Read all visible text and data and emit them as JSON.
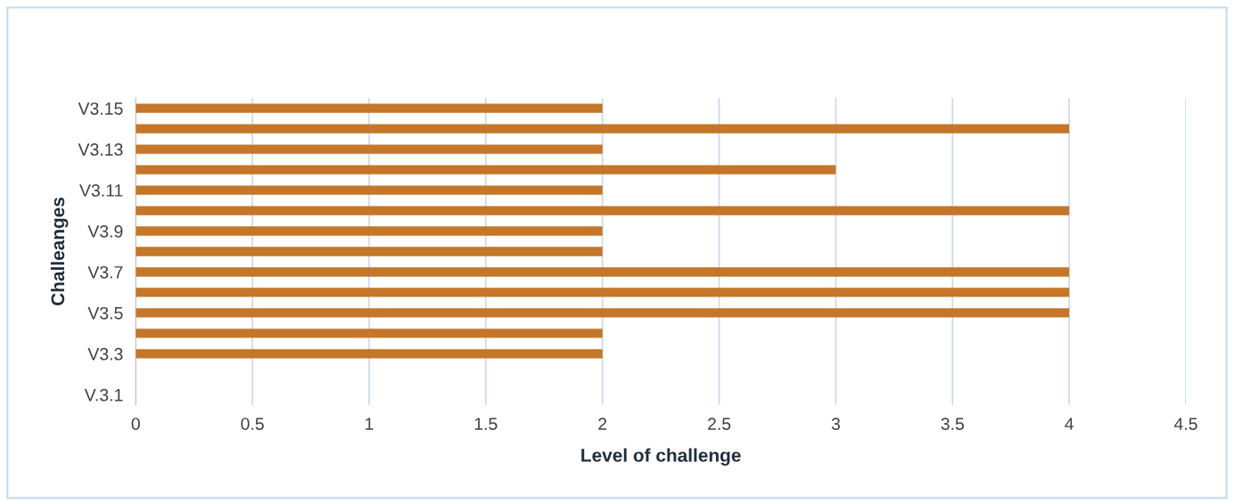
{
  "chart_data": {
    "type": "bar",
    "orientation": "horizontal",
    "xlabel": "Level of challenge",
    "ylabel": "Challeanges",
    "categories": [
      "V3.15",
      null,
      "V3.13",
      null,
      "V3.11",
      null,
      "V3.9",
      null,
      "V3.7",
      null,
      "V3.5",
      null,
      "V3.3",
      null,
      "V.3.1"
    ],
    "values": [
      2,
      4,
      2,
      3,
      2,
      4,
      2,
      2,
      4,
      4,
      4,
      2,
      2,
      null,
      null
    ],
    "color": "#c47629",
    "xlim": [
      0,
      4.5
    ],
    "xticks": [
      0,
      0.5,
      1,
      1.5,
      2,
      2.5,
      3,
      3.5,
      4,
      4.5
    ],
    "grid": "x",
    "legend": false
  }
}
